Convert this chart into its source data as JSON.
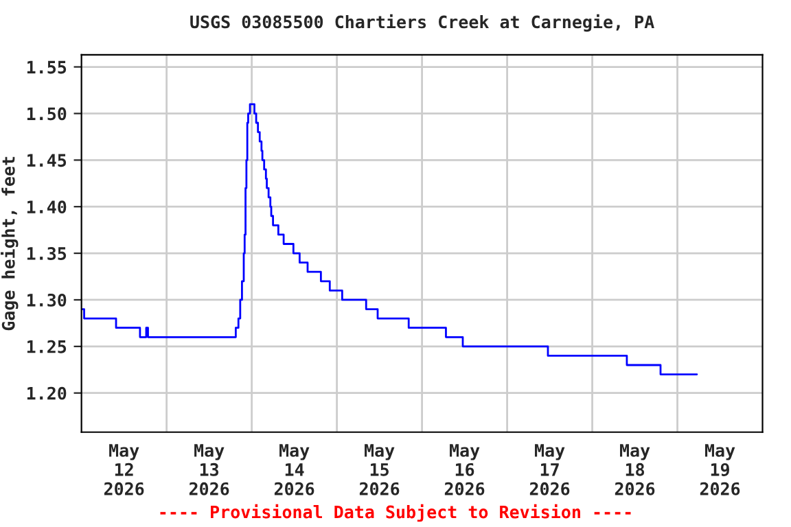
{
  "chart_data": {
    "type": "step",
    "title": "USGS 03085500 Chartiers Creek at Carnegie, PA",
    "ylabel": "Gage height, feet",
    "annotations": [
      "---- Provisional Data Subject to Revision ----"
    ],
    "x": [
      "2026-05-12T00:00",
      "2026-05-12T00:45",
      "2026-05-12T09:45",
      "2026-05-12T16:30",
      "2026-05-12T18:15",
      "2026-05-12T18:45",
      "2026-05-13T19:30",
      "2026-05-13T20:15",
      "2026-05-13T20:45",
      "2026-05-13T21:15",
      "2026-05-13T21:45",
      "2026-05-13T22:00",
      "2026-05-13T22:15",
      "2026-05-13T22:30",
      "2026-05-13T22:45",
      "2026-05-13T23:00",
      "2026-05-13T23:30",
      "2026-05-14T00:45",
      "2026-05-14T01:15",
      "2026-05-14T01:45",
      "2026-05-14T02:15",
      "2026-05-14T02:45",
      "2026-05-14T03:00",
      "2026-05-14T03:30",
      "2026-05-14T04:00",
      "2026-05-14T04:15",
      "2026-05-14T04:45",
      "2026-05-14T05:15",
      "2026-05-14T05:30",
      "2026-05-14T06:00",
      "2026-05-14T07:30",
      "2026-05-14T09:00",
      "2026-05-14T11:45",
      "2026-05-14T13:30",
      "2026-05-14T15:45",
      "2026-05-14T19:30",
      "2026-05-14T22:00",
      "2026-05-15T01:30",
      "2026-05-15T08:15",
      "2026-05-15T11:30",
      "2026-05-15T20:15",
      "2026-05-16T06:45",
      "2026-05-16T11:30",
      "2026-05-17T11:30",
      "2026-05-18T09:45",
      "2026-05-18T19:15",
      "2026-05-19T05:30"
    ],
    "series": [
      {
        "color": "#0000ff",
        "values": [
          1.29,
          1.28,
          1.27,
          1.26,
          1.27,
          1.26,
          1.27,
          1.28,
          1.3,
          1.32,
          1.35,
          1.37,
          1.42,
          1.45,
          1.49,
          1.5,
          1.51,
          1.5,
          1.49,
          1.48,
          1.47,
          1.46,
          1.45,
          1.44,
          1.43,
          1.42,
          1.41,
          1.4,
          1.39,
          1.38,
          1.37,
          1.36,
          1.35,
          1.34,
          1.33,
          1.32,
          1.31,
          1.3,
          1.29,
          1.28,
          1.27,
          1.26,
          1.25,
          1.24,
          1.23,
          1.22,
          1.22
        ]
      }
    ],
    "xlim": [
      "2026-05-12",
      "2026-05-20"
    ],
    "xticks": [
      {
        "value": "2026-05-12T12:00",
        "label": "May\n12\n2026"
      },
      {
        "value": "2026-05-13T12:00",
        "label": "May\n13\n2026"
      },
      {
        "value": "2026-05-14T12:00",
        "label": "May\n14\n2026"
      },
      {
        "value": "2026-05-15T12:00",
        "label": "May\n15\n2026"
      },
      {
        "value": "2026-05-16T12:00",
        "label": "May\n16\n2026"
      },
      {
        "value": "2026-05-17T12:00",
        "label": "May\n17\n2026"
      },
      {
        "value": "2026-05-18T12:00",
        "label": "May\n18\n2026"
      },
      {
        "value": "2026-05-19T12:00",
        "label": "May\n19\n2026"
      },
      {
        "value": "2026-05-13",
        "label": null
      },
      {
        "value": "2026-05-14",
        "label": null
      },
      {
        "value": "2026-05-15",
        "label": null
      },
      {
        "value": "2026-05-16",
        "label": null
      },
      {
        "value": "2026-05-17",
        "label": null
      },
      {
        "value": "2026-05-18",
        "label": null
      },
      {
        "value": "2026-05-19",
        "label": null
      }
    ],
    "ylim": [
      1.158,
      1.563
    ],
    "yticks": [
      {
        "value": 1.2,
        "label": "1.20"
      },
      {
        "value": 1.25,
        "label": "1.25"
      },
      {
        "value": 1.3,
        "label": "1.30"
      },
      {
        "value": 1.35,
        "label": "1.35"
      },
      {
        "value": 1.4,
        "label": "1.40"
      },
      {
        "value": 1.45,
        "label": "1.45"
      },
      {
        "value": 1.5,
        "label": "1.50"
      },
      {
        "value": 1.55,
        "label": "1.55"
      }
    ],
    "grid": true,
    "line_style": "solid",
    "marker": "none"
  }
}
